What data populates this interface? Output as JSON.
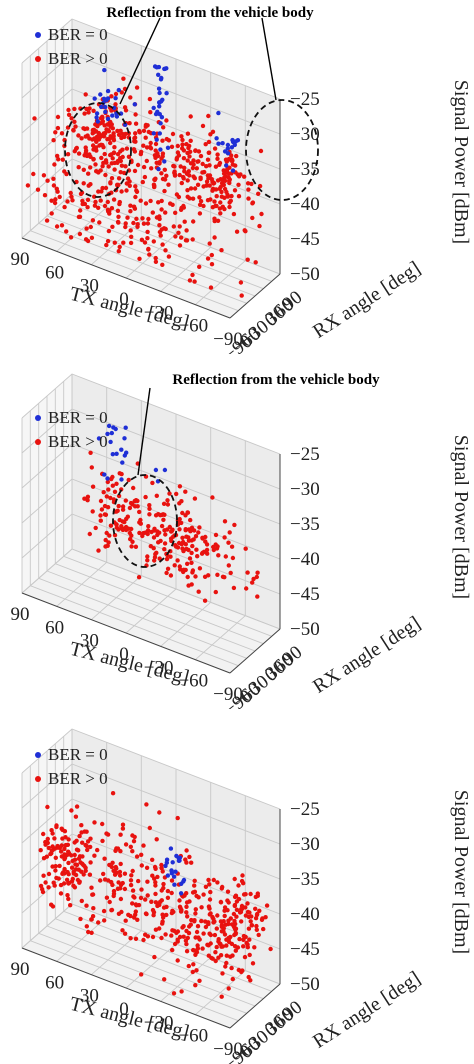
{
  "chart_data": [
    {
      "type": "scatter",
      "x_title": "TX angle [deg]",
      "y_title": "RX angle [deg]",
      "z_title": "Signal Power [dBm]",
      "x_ticks": [
        "90",
        "60",
        "30",
        "0",
        "−30",
        "−60",
        "−90"
      ],
      "y_ticks": [
        "−90",
        "−60",
        "−30",
        "0",
        "30",
        "60",
        "90"
      ],
      "z_ticks": [
        "−25",
        "−30",
        "−35",
        "−40",
        "−45",
        "−50"
      ],
      "xlim": [
        -90,
        90
      ],
      "ylim": [
        -90,
        90
      ],
      "zlim": [
        -50,
        -25
      ],
      "legend": [
        "BER = 0",
        "BER > 0"
      ],
      "legend_position": "top-left",
      "series_colors": [
        "#1f2fd6",
        "#e8120f"
      ],
      "annotation": "Reflection from the vehicle body",
      "clusters": [
        {
          "series": 0,
          "x": 45,
          "y": 40,
          "z": -32,
          "sx": 9,
          "sy": 4,
          "sz": 2,
          "n": 24
        },
        {
          "series": 0,
          "x": 3,
          "y": 45,
          "z": -29,
          "sx": 3,
          "sy": 3,
          "sz": 6,
          "n": 30
        },
        {
          "series": 0,
          "x": -52,
          "y": 40,
          "z": -32,
          "sx": 8,
          "sy": 4,
          "sz": 2,
          "n": 16
        },
        {
          "series": 1,
          "x": 50,
          "y": 30,
          "z": -37,
          "sx": 14,
          "sy": 9,
          "sz": 3,
          "n": 110
        },
        {
          "series": 1,
          "x": 0,
          "y": 25,
          "z": -37,
          "sx": 40,
          "sy": 30,
          "sz": 3,
          "n": 250
        },
        {
          "series": 1,
          "x": -50,
          "y": 30,
          "z": -37,
          "sx": 16,
          "sy": 10,
          "sz": 3,
          "n": 100
        },
        {
          "series": 1,
          "x": 15,
          "y": -45,
          "z": -44,
          "sx": 40,
          "sy": 18,
          "sz": 3,
          "n": 170
        }
      ]
    },
    {
      "type": "scatter",
      "x_title": "TX angle [deg]",
      "y_title": "RX angle [deg]",
      "z_title": "Signal Power [dBm]",
      "x_ticks": [
        "90",
        "60",
        "30",
        "0",
        "−30",
        "−60",
        "−90"
      ],
      "y_ticks": [
        "−90",
        "−60",
        "−30",
        "0",
        "30",
        "60",
        "90"
      ],
      "z_ticks": [
        "−25",
        "−30",
        "−35",
        "−40",
        "−45",
        "−50"
      ],
      "xlim": [
        -90,
        90
      ],
      "ylim": [
        -90,
        90
      ],
      "zlim": [
        -50,
        -25
      ],
      "legend": [
        "BER = 0",
        "BER > 0"
      ],
      "legend_position": "top-left",
      "series_colors": [
        "#1f2fd6",
        "#e8120f"
      ],
      "annotation": "Reflection from the vehicle body",
      "clusters": [
        {
          "series": 0,
          "x": 40,
          "y": 40,
          "z": -32,
          "sx": 6,
          "sy": 4,
          "sz": 2,
          "n": 18
        },
        {
          "series": 0,
          "x": 2,
          "y": 45,
          "z": -33,
          "sx": 3,
          "sy": 3,
          "sz": 1,
          "n": 3
        },
        {
          "series": 1,
          "x": 35,
          "y": 25,
          "z": -38,
          "sx": 12,
          "sy": 12,
          "sz": 3,
          "n": 70
        },
        {
          "series": 1,
          "x": -20,
          "y": 0,
          "z": -38,
          "sx": 30,
          "sy": 25,
          "sz": 3,
          "n": 200
        }
      ]
    },
    {
      "type": "scatter",
      "x_title": "TX angle [deg]",
      "y_title": "RX angle [deg]",
      "z_title": "Signal Power [dBm]",
      "x_ticks": [
        "90",
        "60",
        "30",
        "0",
        "−30",
        "−60",
        "−90"
      ],
      "y_ticks": [
        "−90",
        "−60",
        "−30",
        "0",
        "30",
        "60",
        "90"
      ],
      "z_ticks": [
        "−25",
        "−30",
        "−35",
        "−40",
        "−45",
        "−50"
      ],
      "xlim": [
        -90,
        90
      ],
      "ylim": [
        -90,
        90
      ],
      "zlim": [
        -50,
        -25
      ],
      "legend": [
        "BER = 0",
        "BER > 0"
      ],
      "legend_position": "top-left",
      "series_colors": [
        "#1f2fd6",
        "#e8120f"
      ],
      "annotation": "",
      "clusters": [
        {
          "series": 0,
          "x": -15,
          "y": 30,
          "z": -36,
          "sx": 4,
          "sy": 4,
          "sz": 2,
          "n": 20
        },
        {
          "series": 1,
          "x": 75,
          "y": 0,
          "z": -40,
          "sx": 10,
          "sy": 30,
          "sz": 3,
          "n": 120
        },
        {
          "series": 1,
          "x": 20,
          "y": 10,
          "z": -40,
          "sx": 25,
          "sy": 30,
          "sz": 4,
          "n": 170
        },
        {
          "series": 1,
          "x": -40,
          "y": 0,
          "z": -42,
          "sx": 20,
          "sy": 30,
          "sz": 4,
          "n": 140
        },
        {
          "series": 1,
          "x": -75,
          "y": 0,
          "z": -39,
          "sx": 10,
          "sy": 35,
          "sz": 3,
          "n": 110
        }
      ]
    }
  ]
}
